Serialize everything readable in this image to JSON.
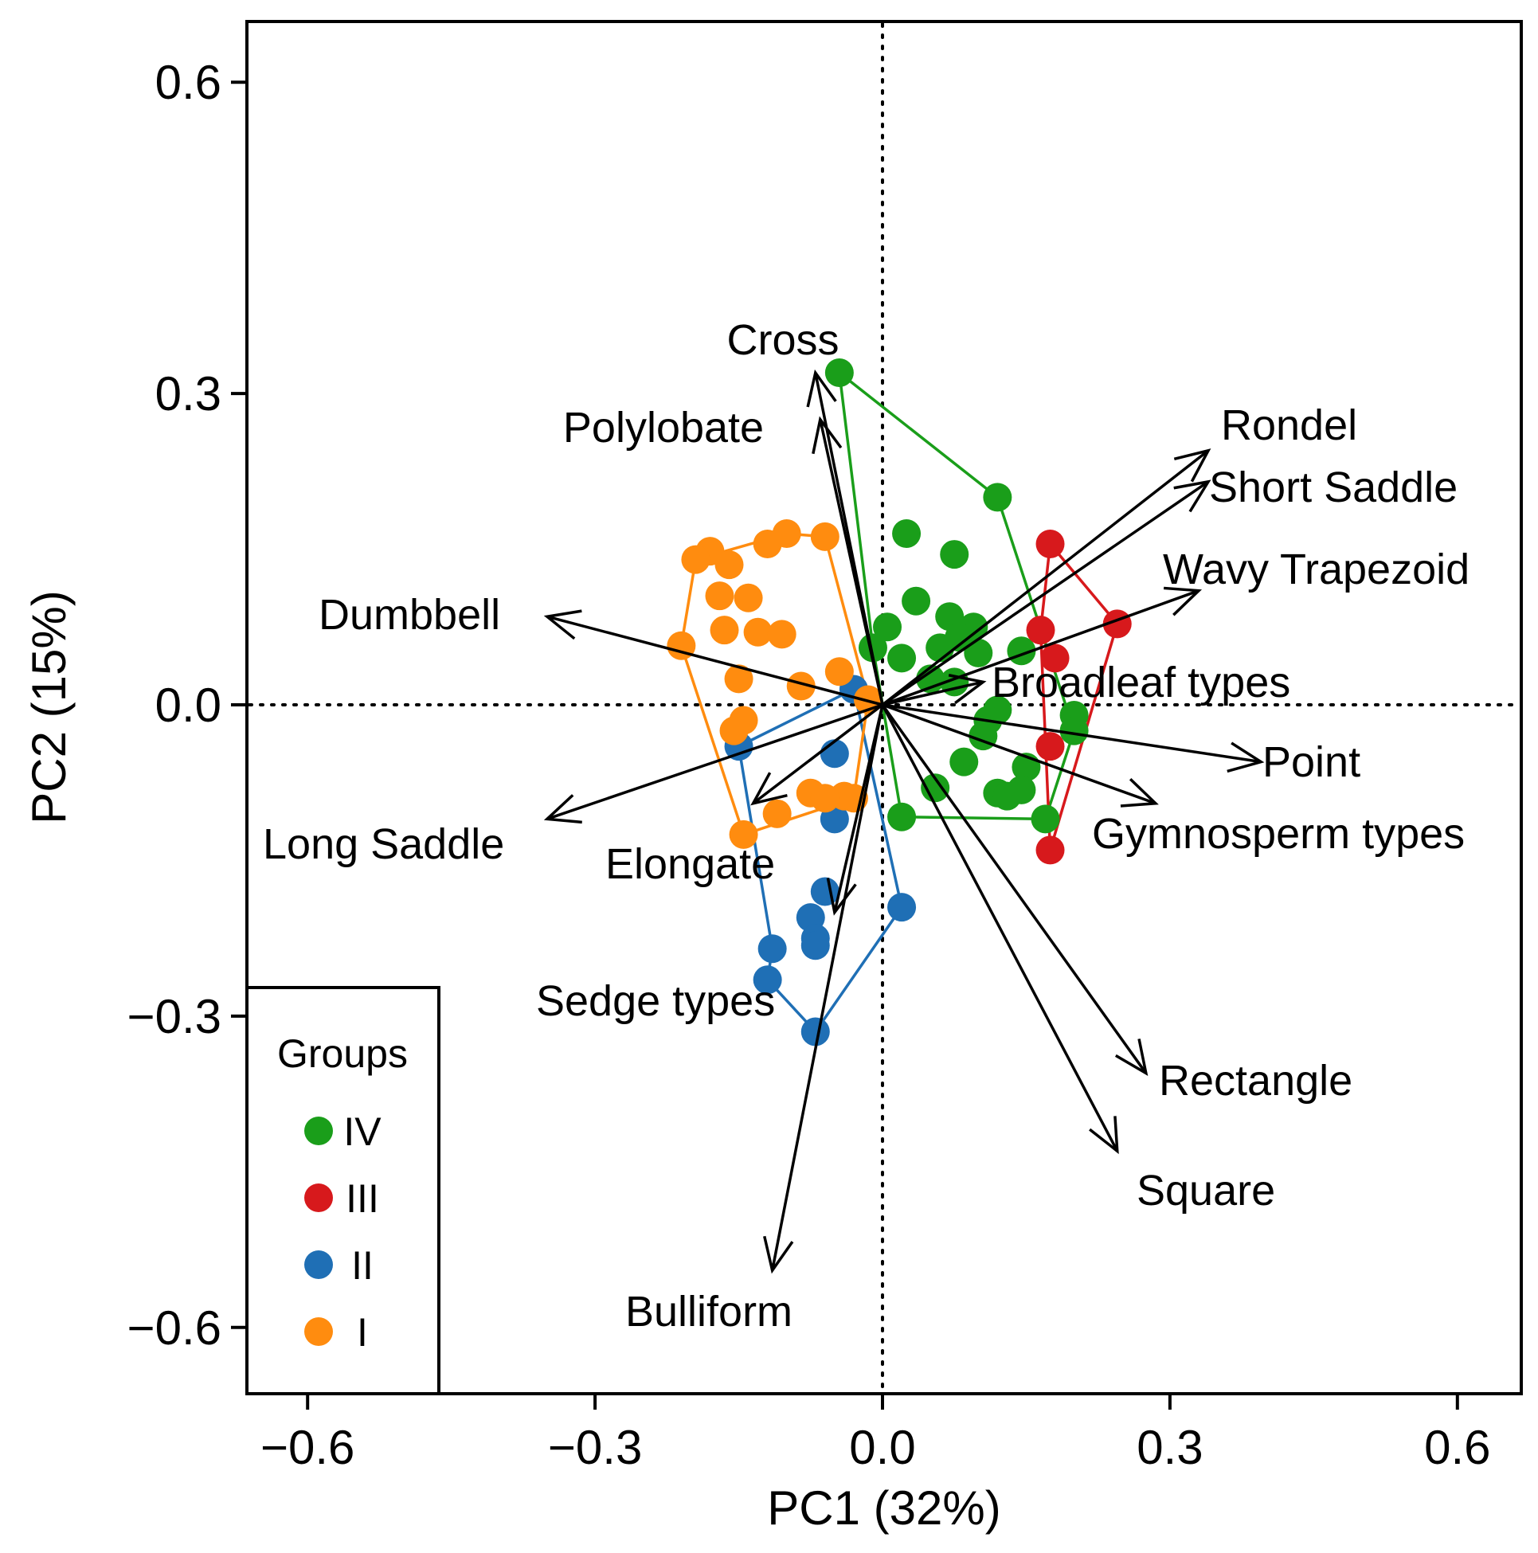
{
  "chart_data": {
    "type": "scatter",
    "title": "",
    "xlabel": "PC1 (32%)",
    "ylabel": "PC2 (15%)",
    "xlim": [
      -0.66,
      0.66
    ],
    "ylim": [
      -0.66,
      0.66
    ],
    "xticks": [
      -0.6,
      -0.3,
      0.0,
      0.3,
      0.6
    ],
    "yticks": [
      -0.6,
      -0.3,
      0.0,
      0.3,
      0.6
    ],
    "x_tick_labels": [
      "−0.6",
      "−0.3",
      "0.0",
      "0.3",
      "0.6"
    ],
    "y_tick_labels": [
      "−0.6",
      "−0.3",
      "0.0",
      "0.3",
      "0.6"
    ],
    "reference_lines": {
      "x": 0,
      "y": 0,
      "style": "dotted"
    },
    "legend": {
      "title": "Groups",
      "position": "bottom-left"
    },
    "series": [
      {
        "name": "IV",
        "color": "#1a9e1a",
        "points": [
          [
            -0.045,
            0.32
          ],
          [
            0.12,
            0.2
          ],
          [
            0.025,
            0.165
          ],
          [
            0.075,
            0.145
          ],
          [
            0.035,
            0.1
          ],
          [
            0.07,
            0.085
          ],
          [
            0.095,
            0.075
          ],
          [
            0.005,
            0.075
          ],
          [
            0.08,
            0.065
          ],
          [
            0.06,
            0.055
          ],
          [
            -0.01,
            0.055
          ],
          [
            0.1,
            0.05
          ],
          [
            0.02,
            0.045
          ],
          [
            0.145,
            0.052
          ],
          [
            0.05,
            0.025
          ],
          [
            0.075,
            0.022
          ],
          [
            0.12,
            -0.005
          ],
          [
            0.11,
            -0.015
          ],
          [
            0.2,
            -0.01
          ],
          [
            0.2,
            -0.025
          ],
          [
            0.105,
            -0.03
          ],
          [
            0.085,
            -0.055
          ],
          [
            0.15,
            -0.06
          ],
          [
            0.055,
            -0.08
          ],
          [
            0.12,
            -0.085
          ],
          [
            0.13,
            -0.088
          ],
          [
            0.145,
            -0.082
          ],
          [
            0.02,
            -0.108
          ],
          [
            0.17,
            -0.11
          ]
        ],
        "hull": [
          [
            -0.045,
            0.32
          ],
          [
            0.12,
            0.2
          ],
          [
            0.2,
            -0.025
          ],
          [
            0.17,
            -0.11
          ],
          [
            0.02,
            -0.108
          ],
          [
            -0.01,
            0.055
          ]
        ]
      },
      {
        "name": "III",
        "color": "#d7191c",
        "points": [
          [
            0.175,
            0.155
          ],
          [
            0.245,
            0.078
          ],
          [
            0.165,
            0.072
          ],
          [
            0.18,
            0.045
          ],
          [
            0.175,
            -0.04
          ],
          [
            0.175,
            -0.14
          ]
        ],
        "hull": [
          [
            0.175,
            0.155
          ],
          [
            0.245,
            0.078
          ],
          [
            0.175,
            -0.14
          ],
          [
            0.165,
            0.072
          ]
        ]
      },
      {
        "name": "II",
        "color": "#1f6fb5",
        "points": [
          [
            -0.03,
            0.015
          ],
          [
            -0.15,
            -0.04
          ],
          [
            -0.05,
            -0.047
          ],
          [
            -0.05,
            -0.11
          ],
          [
            -0.06,
            -0.18
          ],
          [
            0.02,
            -0.195
          ],
          [
            -0.075,
            -0.205
          ],
          [
            -0.07,
            -0.225
          ],
          [
            -0.115,
            -0.235
          ],
          [
            -0.07,
            -0.232
          ],
          [
            -0.12,
            -0.265
          ],
          [
            -0.07,
            -0.315
          ]
        ],
        "hull": [
          [
            -0.03,
            0.015
          ],
          [
            0.02,
            -0.195
          ],
          [
            -0.07,
            -0.315
          ],
          [
            -0.12,
            -0.265
          ],
          [
            -0.115,
            -0.235
          ],
          [
            -0.15,
            -0.04
          ]
        ]
      },
      {
        "name": "I",
        "color": "#ff8c0f",
        "points": [
          [
            -0.1,
            0.165
          ],
          [
            -0.06,
            0.162
          ],
          [
            -0.12,
            0.155
          ],
          [
            -0.18,
            0.148
          ],
          [
            -0.195,
            0.14
          ],
          [
            -0.16,
            0.135
          ],
          [
            -0.17,
            0.105
          ],
          [
            -0.14,
            0.103
          ],
          [
            -0.165,
            0.072
          ],
          [
            -0.13,
            0.07
          ],
          [
            -0.105,
            0.068
          ],
          [
            -0.21,
            0.057
          ],
          [
            -0.045,
            0.032
          ],
          [
            -0.15,
            0.025
          ],
          [
            -0.085,
            0.018
          ],
          [
            -0.015,
            0.005
          ],
          [
            -0.145,
            -0.015
          ],
          [
            -0.155,
            -0.025
          ],
          [
            -0.075,
            -0.085
          ],
          [
            -0.04,
            -0.088
          ],
          [
            -0.06,
            -0.09
          ],
          [
            -0.03,
            -0.09
          ],
          [
            -0.11,
            -0.105
          ],
          [
            -0.145,
            -0.125
          ]
        ],
        "hull": [
          [
            -0.1,
            0.165
          ],
          [
            -0.06,
            0.162
          ],
          [
            -0.015,
            0.005
          ],
          [
            -0.03,
            -0.09
          ],
          [
            -0.145,
            -0.125
          ],
          [
            -0.21,
            0.057
          ],
          [
            -0.195,
            0.14
          ]
        ]
      }
    ],
    "loadings": [
      {
        "label": "Cross",
        "x": -0.07,
        "y": 0.32
      },
      {
        "label": "Polylobate",
        "x": -0.065,
        "y": 0.275
      },
      {
        "label": "Rondel",
        "x": 0.34,
        "y": 0.245
      },
      {
        "label": "Short Saddle",
        "x": 0.34,
        "y": 0.215
      },
      {
        "label": "Wavy Trapezoid",
        "x": 0.33,
        "y": 0.11
      },
      {
        "label": "Dumbbell",
        "x": -0.35,
        "y": 0.085
      },
      {
        "label": "Broadleaf types",
        "x": 0.105,
        "y": 0.022
      },
      {
        "label": "Point",
        "x": 0.395,
        "y": -0.055
      },
      {
        "label": "Gymnosperm types",
        "x": 0.285,
        "y": -0.095
      },
      {
        "label": "Long Saddle",
        "x": -0.35,
        "y": -0.11
      },
      {
        "label": "Elongate",
        "x": -0.135,
        "y": -0.095
      },
      {
        "label": "Sedge types",
        "x": -0.05,
        "y": -0.2
      },
      {
        "label": "Rectangle",
        "x": 0.275,
        "y": -0.355
      },
      {
        "label": "Square",
        "x": 0.245,
        "y": -0.43
      },
      {
        "label": "Bulliform",
        "x": -0.115,
        "y": -0.545
      }
    ]
  }
}
